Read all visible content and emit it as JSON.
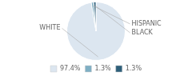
{
  "chart_data": {
    "type": "pie",
    "categories": [
      "WHITE",
      "HISPANIC",
      "BLACK"
    ],
    "values": [
      97.4,
      1.3,
      1.3
    ],
    "value_labels": [
      "97.4%",
      "1.3%",
      "1.3%"
    ],
    "colors": [
      "#dce6f0",
      "#7fafc4",
      "#2e5f7a"
    ],
    "legend": "bottom"
  }
}
